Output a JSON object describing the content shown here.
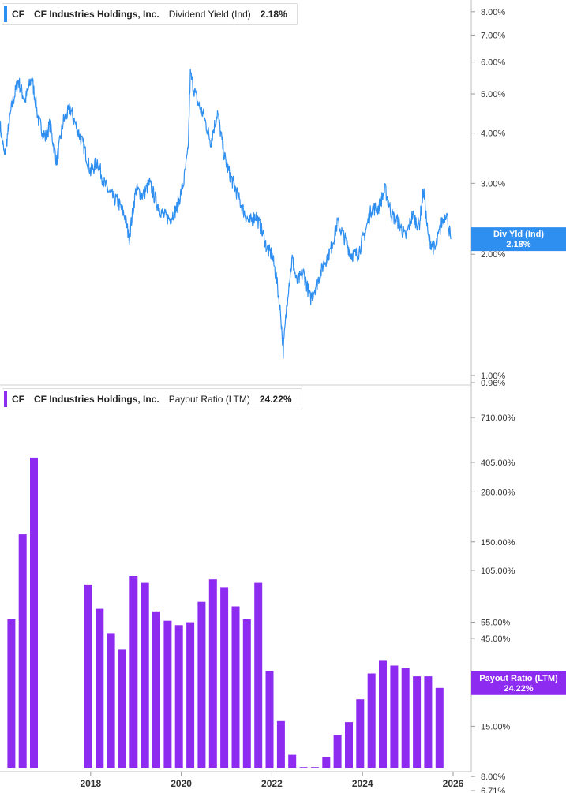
{
  "chart_data": [
    {
      "type": "line",
      "title": "CF Industries Holdings, Inc. Dividend Yield (Ind)",
      "legend": {
        "ticker": "CF",
        "company": "CF Industries Holdings, Inc.",
        "metric": "Dividend Yield (Ind)",
        "value": "2.18%"
      },
      "end_tag": {
        "label": "Div Yld (Ind)",
        "value": "2.18%"
      },
      "color": "#2e8ff0",
      "yscale": "log",
      "ylim": [
        0.96,
        8.4
      ],
      "ytick_values": [
        8.0,
        7.0,
        6.0,
        5.0,
        4.0,
        3.0,
        2.0,
        1.0,
        0.96
      ],
      "ytick_labels": [
        "8.00%",
        "7.00%",
        "6.00%",
        "5.00%",
        "4.00%",
        "3.00%",
        "2.00%",
        "1.00%",
        "0.96%"
      ],
      "x": [
        2016.0,
        2016.1,
        2016.25,
        2016.4,
        2016.55,
        2016.7,
        2016.85,
        2017.0,
        2017.1,
        2017.25,
        2017.4,
        2017.55,
        2017.7,
        2017.85,
        2018.0,
        2018.15,
        2018.3,
        2018.45,
        2018.6,
        2018.75,
        2018.85,
        2019.0,
        2019.15,
        2019.3,
        2019.45,
        2019.6,
        2019.75,
        2019.9,
        2020.05,
        2020.15,
        2020.2,
        2020.35,
        2020.5,
        2020.65,
        2020.8,
        2020.95,
        2021.05,
        2021.2,
        2021.35,
        2021.5,
        2021.65,
        2021.8,
        2021.9,
        2022.0,
        2022.1,
        2022.2,
        2022.25,
        2022.35,
        2022.45,
        2022.55,
        2022.7,
        2022.85,
        2023.0,
        2023.15,
        2023.3,
        2023.45,
        2023.6,
        2023.75,
        2023.9,
        2024.05,
        2024.2,
        2024.35,
        2024.5,
        2024.65,
        2024.8,
        2024.95,
        2025.1,
        2025.25,
        2025.35,
        2025.45,
        2025.6,
        2025.75,
        2025.85,
        2025.95
      ],
      "y": [
        4.2,
        3.5,
        4.6,
        5.4,
        4.8,
        5.5,
        4.3,
        3.9,
        4.2,
        3.4,
        4.3,
        4.6,
        4.1,
        3.7,
        3.2,
        3.4,
        3.0,
        2.8,
        2.7,
        2.5,
        2.2,
        2.9,
        2.8,
        3.0,
        2.7,
        2.5,
        2.45,
        2.6,
        3.0,
        3.6,
        5.6,
        4.8,
        4.4,
        3.8,
        4.5,
        3.5,
        3.2,
        2.9,
        2.6,
        2.4,
        2.5,
        2.25,
        2.05,
        2.0,
        1.75,
        1.4,
        1.15,
        1.6,
        1.95,
        1.7,
        1.8,
        1.55,
        1.7,
        1.9,
        2.05,
        2.4,
        2.2,
        2.0,
        2.0,
        2.25,
        2.6,
        2.6,
        2.9,
        2.5,
        2.4,
        2.2,
        2.5,
        2.35,
        2.9,
        2.2,
        2.05,
        2.4,
        2.55,
        2.18
      ]
    },
    {
      "type": "bar",
      "title": "CF Industries Holdings, Inc. Payout Ratio (LTM)",
      "legend": {
        "ticker": "CF",
        "company": "CF Industries Holdings, Inc.",
        "metric": "Payout Ratio (LTM)",
        "value": "24.22%"
      },
      "end_tag": {
        "label": "Payout Ratio (LTM)",
        "value": "24.22%"
      },
      "color": "#8e2bf0",
      "yscale": "log",
      "ylim": [
        6.71,
        900
      ],
      "ytick_values": [
        710,
        405,
        280,
        150,
        105,
        55,
        45,
        15,
        8,
        6.71
      ],
      "ytick_labels": [
        "710.00%",
        "405.00%",
        "280.00%",
        "150.00%",
        "105.00%",
        "55.00%",
        "45.00%",
        "15.00%",
        "8.00%",
        "6.71%"
      ],
      "x": [
        2016.25,
        2016.5,
        2016.75,
        2017.95,
        2018.2,
        2018.45,
        2018.7,
        2018.95,
        2019.2,
        2019.45,
        2019.7,
        2019.95,
        2020.2,
        2020.45,
        2020.7,
        2020.95,
        2021.2,
        2021.45,
        2021.7,
        2021.95,
        2022.2,
        2022.45,
        2022.7,
        2022.95,
        2023.2,
        2023.45,
        2023.7,
        2023.95,
        2024.2,
        2024.45,
        2024.7,
        2024.95,
        2025.2,
        2025.45,
        2025.7
      ],
      "values": [
        57,
        165,
        430,
        88,
        65,
        48,
        39,
        98,
        90,
        63,
        56,
        53,
        55,
        71,
        94,
        85,
        67,
        57,
        90,
        30,
        16,
        10.5,
        9.0,
        9.0,
        10.2,
        13.5,
        15.8,
        21,
        29,
        34,
        32,
        31,
        28,
        28,
        24.22
      ]
    }
  ],
  "x_axis": {
    "tick_values": [
      2018,
      2020,
      2022,
      2024,
      2026
    ],
    "tick_labels": [
      "2018",
      "2020",
      "2022",
      "2024",
      "2026"
    ]
  }
}
